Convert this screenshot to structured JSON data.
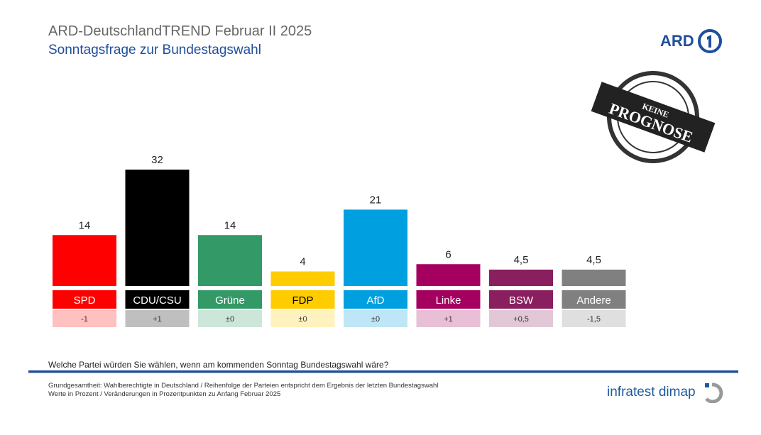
{
  "header": {
    "title": "ARD-DeutschlandTREND Februar II 2025",
    "subtitle": "Sonntagsfrage zur Bundestagswahl",
    "logo": "ARD"
  },
  "stamp": {
    "line1": "KEINE",
    "line2": "PROGNOSE"
  },
  "chart_data": {
    "type": "bar",
    "categories": [
      "SPD",
      "CDU/CSU",
      "Grüne",
      "FDP",
      "AfD",
      "Linke",
      "BSW",
      "Andere"
    ],
    "values": [
      14,
      32,
      14,
      4,
      21,
      6,
      4.5,
      4.5
    ],
    "value_labels": [
      "14",
      "32",
      "14",
      "4",
      "21",
      "6",
      "4,5",
      "4,5"
    ],
    "changes": [
      "-1",
      "+1",
      "±0",
      "±0",
      "±0",
      "+1",
      "+0,5",
      "-1,5"
    ],
    "colors": [
      "#ff0000",
      "#000000",
      "#339966",
      "#ffcc00",
      "#00a0e0",
      "#a50060",
      "#8a1f5f",
      "#808080"
    ],
    "change_colors": [
      "#ffc0c0",
      "#bfbfbf",
      "#cce6d9",
      "#fff2bf",
      "#bfe6f7",
      "#e9bfd7",
      "#e2c7d7",
      "#dfdfdf"
    ],
    "label_text_colors": [
      "#ffffff",
      "#ffffff",
      "#ffffff",
      "#000000",
      "#ffffff",
      "#ffffff",
      "#ffffff",
      "#ffffff"
    ],
    "ylim": [
      0,
      32
    ]
  },
  "footer": {
    "question": "Welche Partei würden Sie wählen, wenn am kommenden Sonntag Bundestagswahl wäre?",
    "note1": "Grundgesamtheit: Wahlberechtigte in Deutschland / Reihenfolge der Parteien entspricht dem Ergebnis der letzten Bundestagswahl",
    "note2": "Werte in Prozent / Veränderungen in Prozentpunkten zu Anfang Februar 2025",
    "brand": "infratest dimap"
  }
}
